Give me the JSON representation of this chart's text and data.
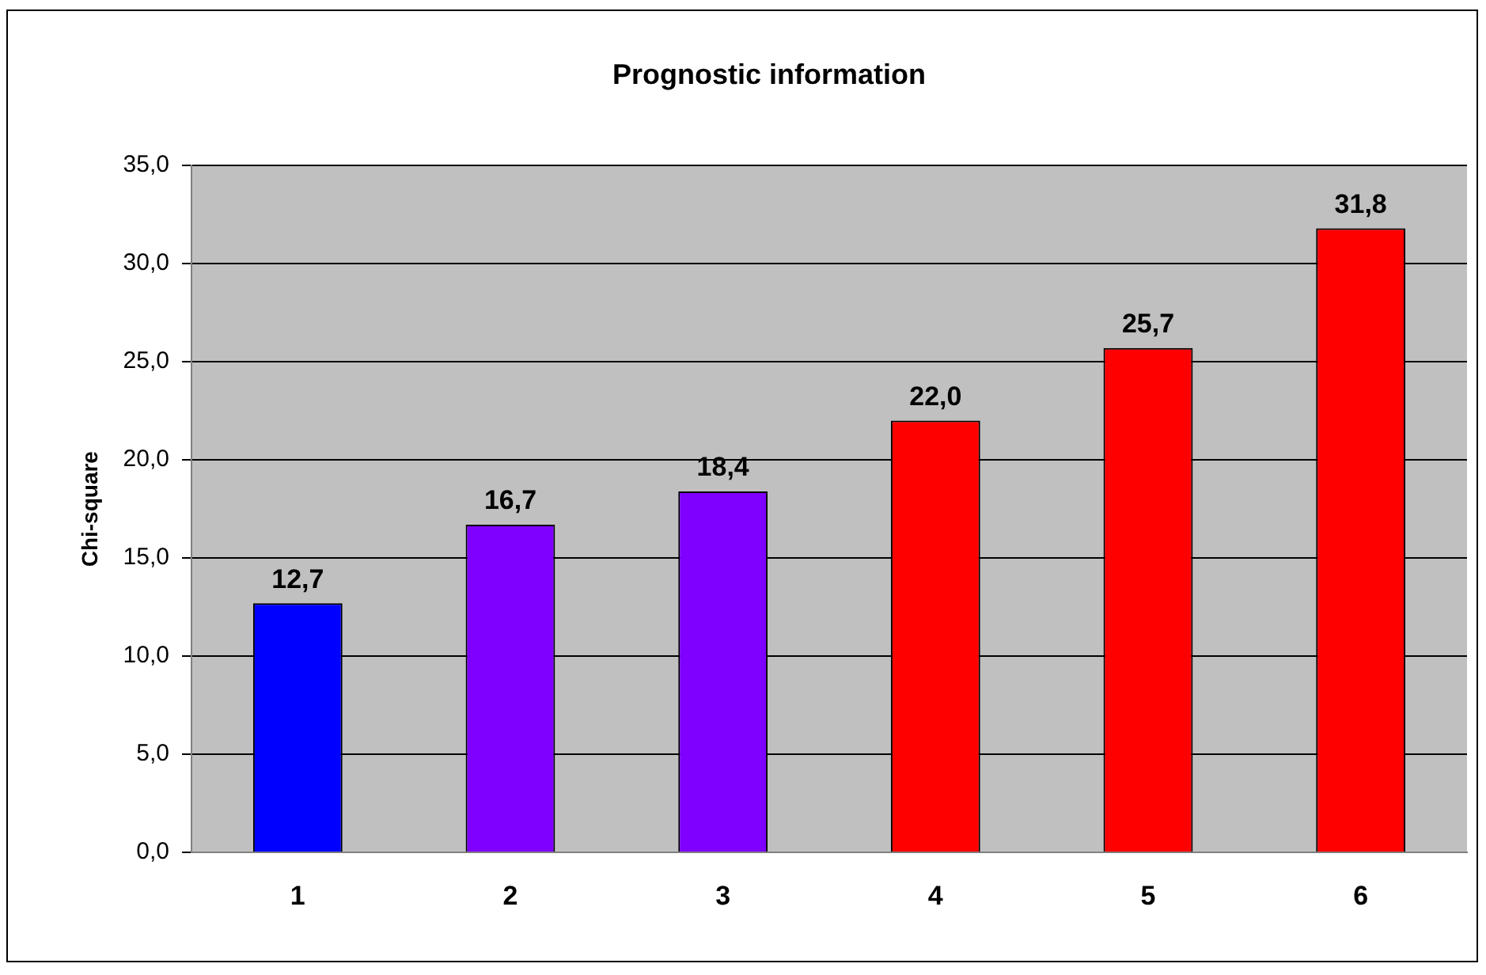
{
  "chart_data": {
    "type": "bar",
    "title": "Prognostic information",
    "ylabel": "Chi-square",
    "categories": [
      "1",
      "2",
      "3",
      "4",
      "5",
      "6"
    ],
    "values": [
      12.7,
      16.7,
      18.4,
      22.0,
      25.7,
      31.8
    ],
    "colors": [
      "#0000ff",
      "#7f00ff",
      "#7f00ff",
      "#ff0000",
      "#ff0000",
      "#ff0000"
    ],
    "value_labels": [
      "12,7",
      "16,7",
      "18,4",
      "22,0",
      "25,7",
      "31,8"
    ],
    "ylim": [
      0,
      35
    ],
    "yticks": [
      {
        "value": 0,
        "label": "0,0"
      },
      {
        "value": 5,
        "label": "5,0"
      },
      {
        "value": 10,
        "label": "10,0"
      },
      {
        "value": 15,
        "label": "15,0"
      },
      {
        "value": 20,
        "label": "20,0"
      },
      {
        "value": 25,
        "label": "25,0"
      },
      {
        "value": 30,
        "label": "30,0"
      },
      {
        "value": 35,
        "label": "35,0"
      }
    ],
    "grid": "y",
    "legend": false
  }
}
